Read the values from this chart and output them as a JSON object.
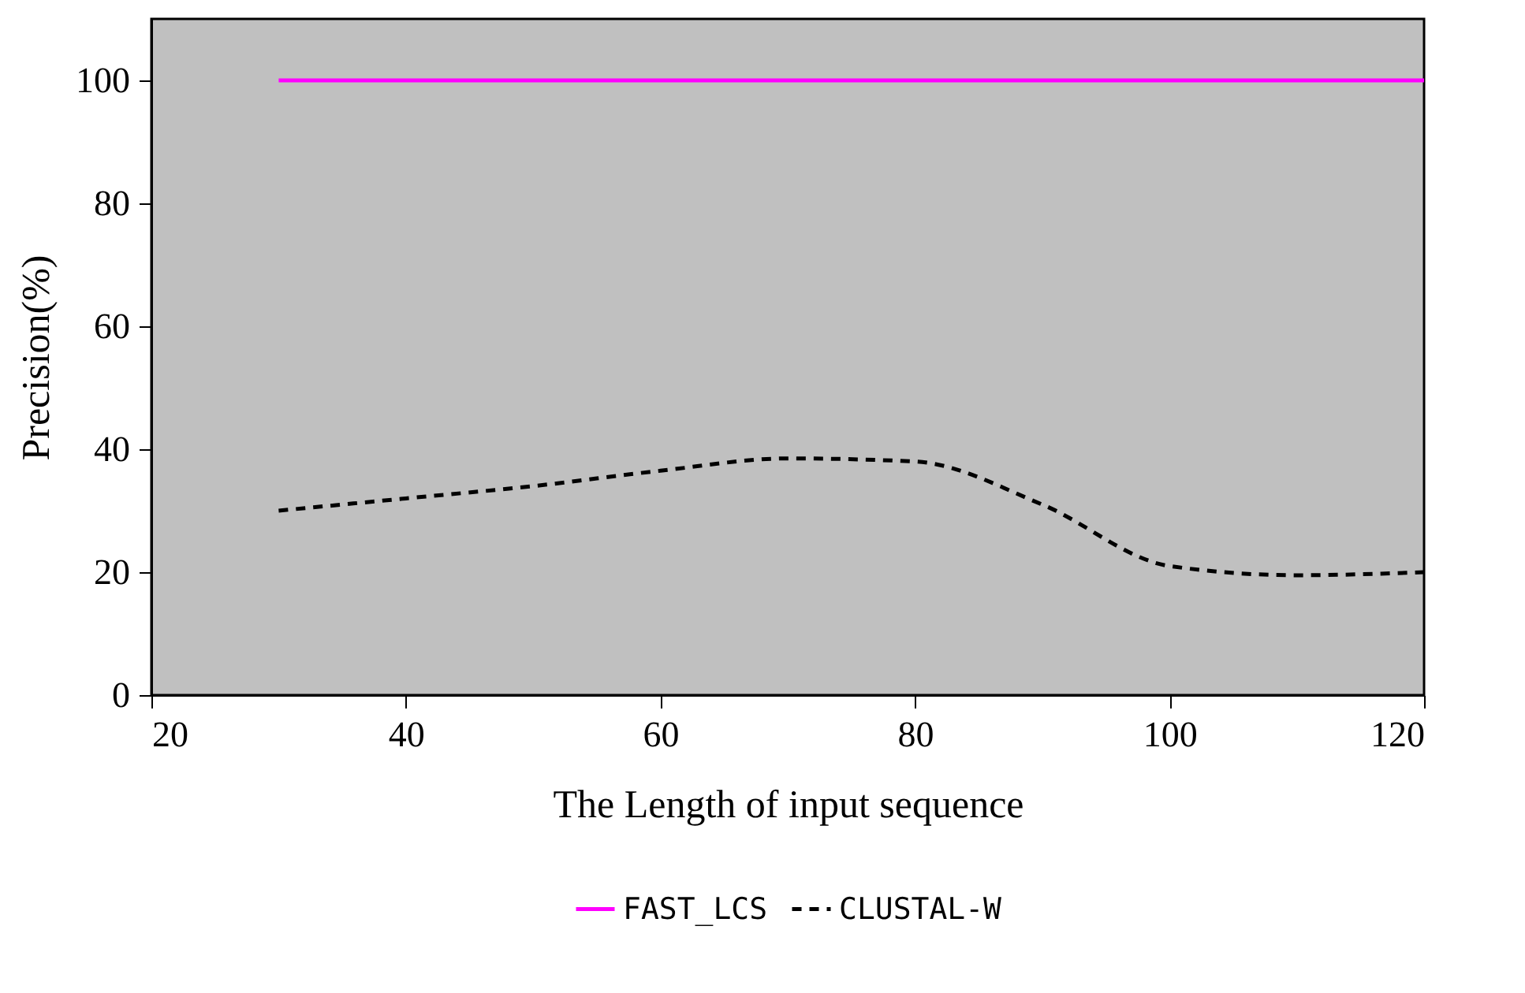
{
  "chart_data": {
    "type": "line",
    "xlabel": "The Length of input sequence",
    "ylabel": "Precision(%)",
    "x": [
      30,
      40,
      50,
      60,
      70,
      80,
      90,
      100,
      110,
      120
    ],
    "series": [
      {
        "name": "FAST_LCS",
        "color": "#ff00ff",
        "line_style": "solid",
        "values": [
          100,
          100,
          100,
          100,
          100,
          100,
          100,
          100,
          100,
          100
        ]
      },
      {
        "name": "CLUSTAL-W",
        "color": "#000000",
        "line_style": "dashed",
        "values": [
          30,
          32,
          34,
          36.5,
          38.5,
          38,
          31,
          21,
          19.5,
          20
        ]
      }
    ],
    "xlim": [
      20,
      120
    ],
    "xticks": [
      20,
      40,
      60,
      80,
      100,
      120
    ],
    "ylim": [
      0,
      110
    ],
    "yticks": [
      0,
      20,
      40,
      60,
      80,
      100
    ],
    "grid": false,
    "legend": "bottom",
    "marker": "none"
  }
}
